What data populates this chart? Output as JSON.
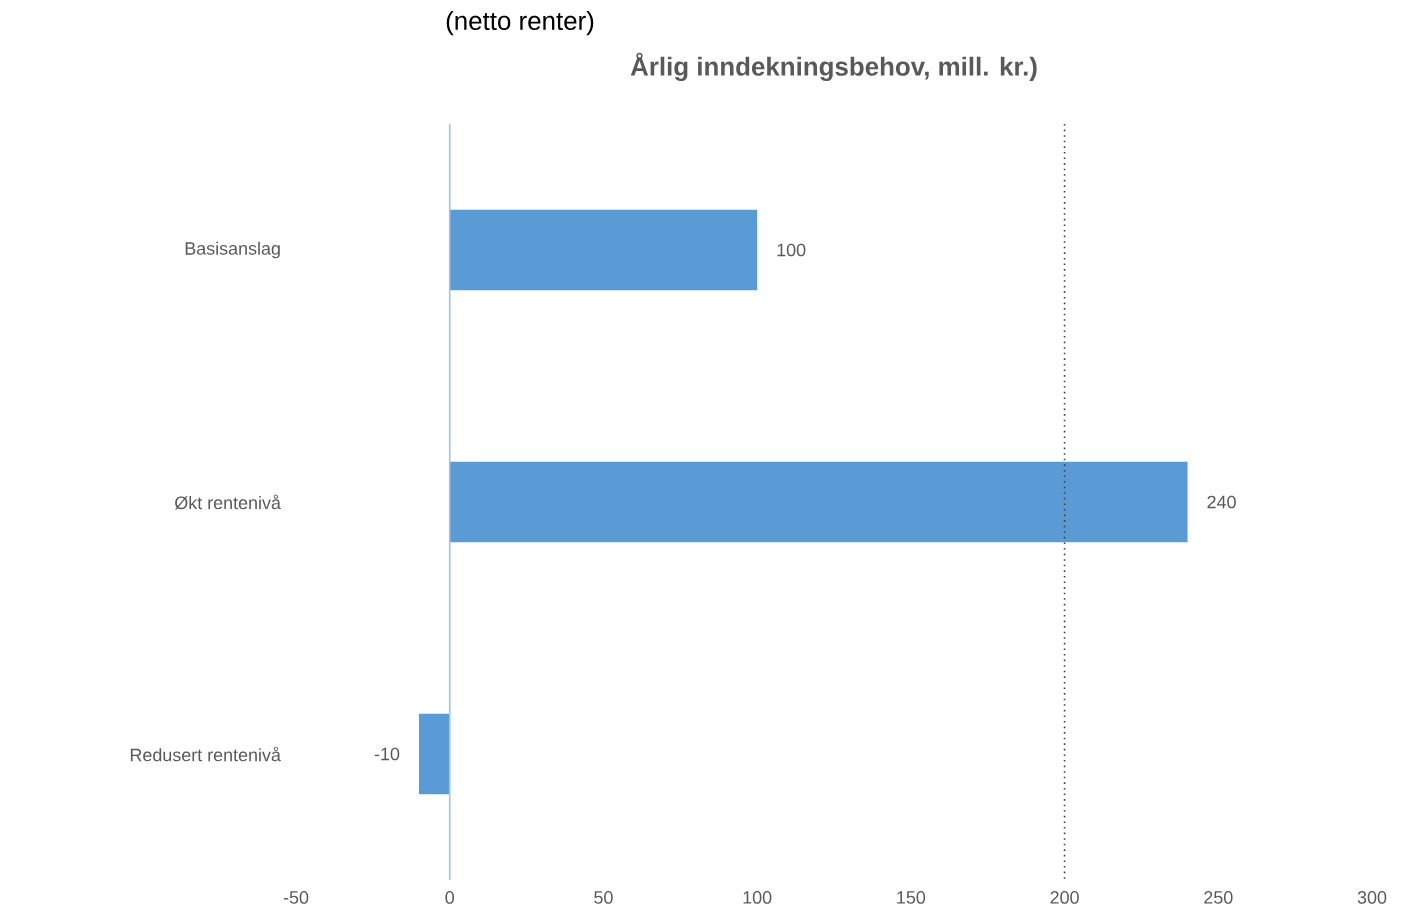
{
  "chart_data": {
    "type": "bar",
    "orientation": "horizontal",
    "title": "Årlig inndekningsbehov, mill. kr.)",
    "categories": [
      "Basisanslag",
      "Økt rentenivå",
      "Redusert rentenivå"
    ],
    "values": [
      100,
      240,
      -10
    ],
    "color": "#5b9bd5",
    "data_labels": true,
    "xlim": [
      -50,
      300
    ],
    "xticks": [
      -50,
      0,
      50,
      100,
      150,
      200,
      250,
      300
    ],
    "ref_lines": [
      {
        "axis": "x",
        "value": 0,
        "color": "#9dc3e6",
        "line_style": "solid"
      },
      {
        "axis": "x",
        "value": 200,
        "color": "#404040",
        "line_style": "dotted"
      }
    ],
    "annotations": [
      "(netto renter)"
    ]
  }
}
